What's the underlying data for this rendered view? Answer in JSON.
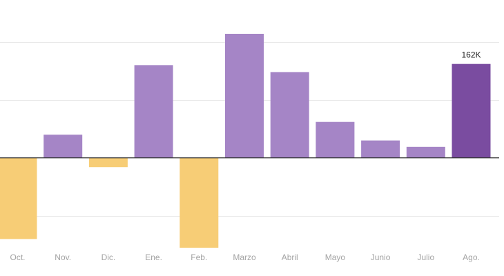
{
  "chart_data": {
    "type": "bar",
    "categories": [
      "Oct.",
      "Nov.",
      "Dic.",
      "Ene.",
      "Feb.",
      "Marzo",
      "Abril",
      "Mayo",
      "Junio",
      "Julio",
      "Ago."
    ],
    "values": [
      -140,
      40,
      -16,
      160,
      -155,
      214,
      148,
      62,
      30,
      19,
      162
    ],
    "value_unit": "K",
    "data_labels": [
      {
        "category": "Ago.",
        "text": "162K"
      }
    ],
    "highlight_category": "Ago.",
    "ylim": [
      -155,
      214
    ],
    "gridlines": [
      -100,
      100,
      200
    ],
    "grid": true,
    "colors": {
      "positive": "#a585c6",
      "negative": "#f7cd76",
      "highlight": "#7a4ca0",
      "zero_line": "#333333",
      "gridline": "#e9e9e9",
      "tick_label": "#a3a3a3",
      "data_label": "#222222"
    }
  }
}
